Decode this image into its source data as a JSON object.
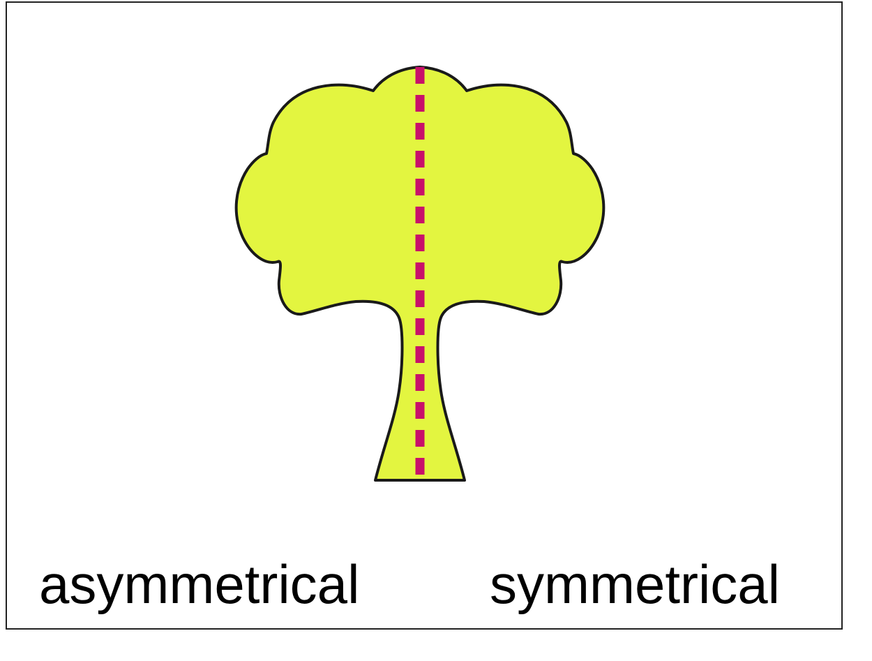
{
  "figure": {
    "shape": "tree-silhouette-icon",
    "fill_color": "#E3F540",
    "outline_color": "#1a1a1a",
    "symmetry_line_color": "#C8106A"
  },
  "options": {
    "asymmetrical": "asymmetrical",
    "symmetrical": "symmetrical"
  }
}
